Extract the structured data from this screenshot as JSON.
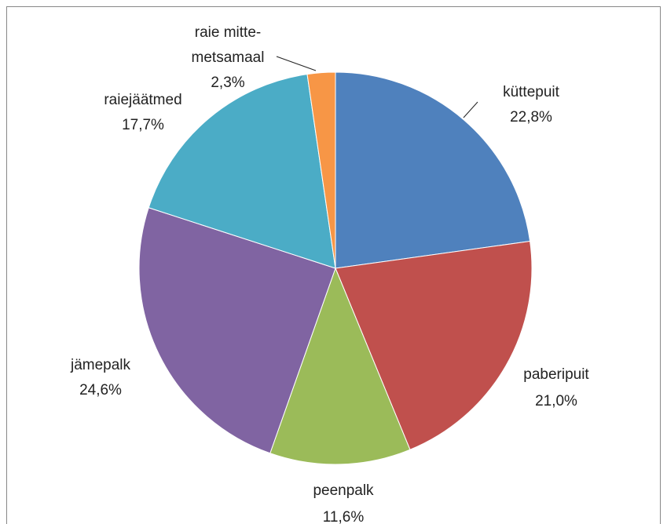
{
  "chart_data": {
    "type": "pie",
    "categories": [
      "küttepuit",
      "paberipuit",
      "peenpalk",
      "jämepalk",
      "raiejäätmed",
      "raie mitte-\nmetsamaal"
    ],
    "values": [
      22.8,
      21.0,
      11.6,
      24.6,
      17.7,
      2.3
    ],
    "value_labels": [
      "22,8%",
      "21,0%",
      "11,6%",
      "24,6%",
      "17,7%",
      "2,3%"
    ],
    "colors": [
      "#4f81bd",
      "#c0504d",
      "#9bbb59",
      "#8064a2",
      "#4bacc6",
      "#f79646"
    ]
  }
}
